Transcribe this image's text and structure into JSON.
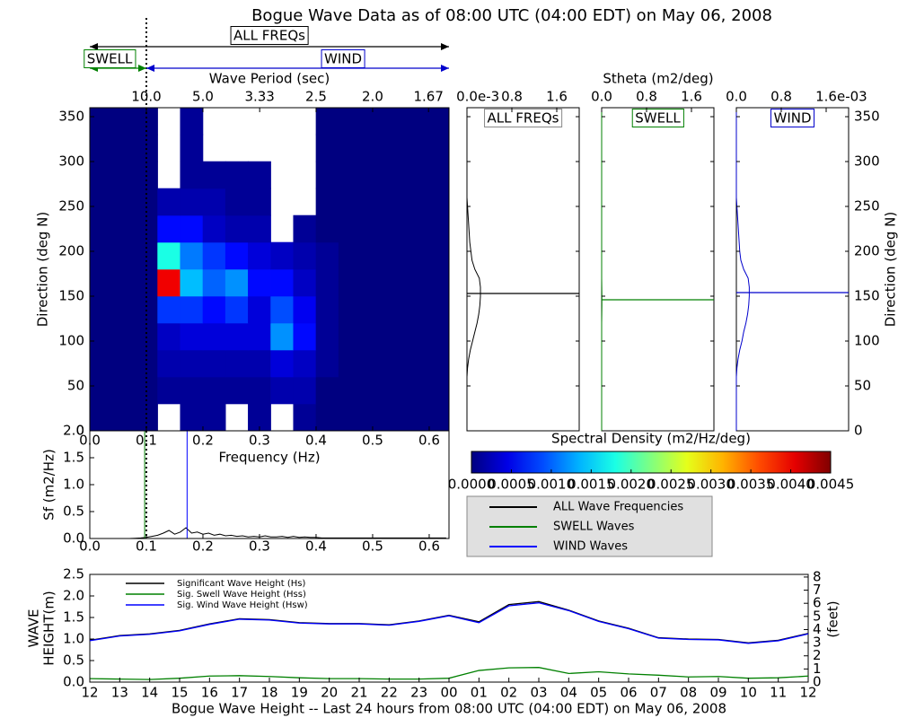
{
  "chart_data": [
    {
      "type": "heatmap",
      "title": "Bogue Wave Data as of 08:00 UTC (04:00 EDT) on May 06, 2008",
      "xlabel": "Frequency (Hz)",
      "ylabel": "Direction (deg N)",
      "xlim": [
        0,
        0.635
      ],
      "ylim": [
        0,
        360
      ],
      "xticks": [
        {
          "value": 0,
          "label": "0.0"
        },
        0.1,
        0.2,
        0.3,
        0.4,
        0.5,
        0.6
      ],
      "yticks": [
        0,
        50,
        100,
        150,
        200,
        250,
        300,
        350
      ],
      "x_bins": [
        0,
        0.04,
        0.08,
        0.12,
        0.16,
        0.2,
        0.24,
        0.28,
        0.32,
        0.36,
        0.4,
        0.44,
        0.48,
        0.52,
        0.56,
        0.6,
        0.64
      ],
      "y_bins": [
        0,
        30,
        60,
        90,
        120,
        150,
        180,
        210,
        240,
        270,
        300,
        330,
        360
      ],
      "values": [
        [
          0,
          0,
          0,
          null,
          0.0001,
          0.0001,
          null,
          0.0001,
          null,
          0.0001,
          0,
          0,
          0,
          0,
          0,
          0
        ],
        [
          0,
          0,
          0,
          0.0001,
          0.0001,
          0.0001,
          0.0001,
          0.0001,
          0.0002,
          0.0002,
          0,
          0,
          0,
          0,
          0,
          0
        ],
        [
          0,
          0,
          0,
          0.0002,
          0.0002,
          0.0002,
          0.0002,
          0.0002,
          0.0004,
          0.0003,
          0.0001,
          0,
          0,
          0,
          0,
          0
        ],
        [
          0,
          0,
          0,
          0.0003,
          0.0004,
          0.0004,
          0.0004,
          0.0004,
          0.0012,
          0.0006,
          0.0001,
          0,
          0,
          0,
          0,
          0
        ],
        [
          0,
          0,
          0,
          0.0008,
          0.0008,
          0.0006,
          0.0008,
          0.0004,
          0.0009,
          0.0005,
          0.0001,
          0,
          0,
          0,
          0,
          0
        ],
        [
          0,
          0,
          0,
          0.004,
          0.0014,
          0.001,
          0.0012,
          0.0006,
          0.0006,
          0.0003,
          0.0001,
          0,
          0,
          0,
          0,
          0
        ],
        [
          0,
          0,
          0,
          0.0018,
          0.0011,
          0.0008,
          0.0006,
          0.0004,
          0.0003,
          0.0002,
          0.0001,
          0,
          0,
          0,
          0,
          0
        ],
        [
          0,
          0,
          0,
          0.0006,
          0.0006,
          0.0003,
          0.0002,
          0.0002,
          null,
          0.0001,
          0,
          0,
          0,
          0,
          0,
          0
        ],
        [
          0,
          0,
          0,
          0.0002,
          0.0002,
          0.0002,
          0.0001,
          0.0001,
          null,
          null,
          0,
          0,
          0,
          0,
          0,
          0
        ],
        [
          0,
          0,
          0,
          null,
          0.0001,
          0.0001,
          0.0001,
          0.0001,
          null,
          null,
          0,
          0,
          0,
          0,
          0,
          0
        ],
        [
          0,
          0,
          0,
          null,
          0.0001,
          null,
          null,
          null,
          null,
          null,
          0,
          0,
          0,
          0,
          0,
          0
        ],
        [
          0,
          0,
          0,
          null,
          0.0001,
          null,
          null,
          null,
          null,
          null,
          0,
          0,
          0,
          0,
          0,
          0
        ]
      ],
      "separation_freq": 0.1,
      "bands": [
        {
          "name": "ALL FREQs",
          "color": "#000000"
        },
        {
          "name": "SWELL",
          "color": "#008000"
        },
        {
          "name": "WIND",
          "color": "#0000cc"
        }
      ],
      "period_axis": {
        "label": "Wave Period (sec)",
        "ticks": [
          {
            "value": 10,
            "label": "10.0"
          },
          {
            "value": 5,
            "label": "5.0"
          },
          3.33,
          2.5,
          {
            "value": 2,
            "label": "2.0"
          },
          1.67
        ]
      },
      "colorbar": {
        "label": "Spectral Density (m2/Hz/deg)",
        "lim": [
          0,
          0.0045
        ],
        "ticks": [
          {
            "value": 0,
            "label": "0.0000"
          },
          {
            "value": 0.0005,
            "label": "0.0005"
          },
          {
            "value": 0.001,
            "label": "0.0010"
          },
          {
            "value": 0.0015,
            "label": "0.0015"
          },
          {
            "value": 0.002,
            "label": "0.0020"
          },
          {
            "value": 0.0025,
            "label": "0.0025"
          },
          {
            "value": 0.003,
            "label": "0.0030"
          },
          {
            "value": 0.0035,
            "label": "0.0035"
          },
          {
            "value": 0.004,
            "label": "0.0040"
          },
          {
            "value": 0.0045,
            "label": "0.0045"
          }
        ]
      }
    },
    {
      "type": "direction-spectra",
      "xlabel": "Stheta (m2/deg)",
      "ylabel": "Direction (deg N)",
      "xlim": [
        0,
        0.002
      ],
      "ylim": [
        0,
        360
      ],
      "yticks": [
        0,
        50,
        100,
        150,
        200,
        250,
        300,
        350
      ],
      "directions": [
        0,
        10,
        20,
        30,
        40,
        50,
        60,
        70,
        80,
        90,
        100,
        110,
        120,
        130,
        140,
        150,
        160,
        170,
        180,
        190,
        200,
        210,
        220,
        230,
        240,
        250,
        260,
        270,
        280,
        290,
        300,
        310,
        320,
        330,
        340,
        350,
        360
      ],
      "panels": [
        {
          "name": "ALL FREQs",
          "color": "#000000",
          "mean_direction": 153,
          "offset_label": "e-3",
          "xticks": [
            {
              "value": 0,
              "label": "0.0"
            },
            {
              "value": 0.0008,
              "label": "0.8"
            },
            {
              "value": 0.0016,
              "label": "1.6"
            }
          ],
          "values": [
            0,
            0,
            0,
            0,
            0,
            0,
            0,
            1e-05,
            3e-05,
            6e-05,
            0.0001,
            0.00014,
            0.00018,
            0.00021,
            0.00023,
            0.00024,
            0.00024,
            0.00022,
            0.00014,
            9e-05,
            7e-05,
            5e-05,
            4e-05,
            3e-05,
            2e-05,
            1e-05,
            0,
            0,
            0,
            0,
            0,
            0,
            0,
            0,
            0,
            0,
            0
          ]
        },
        {
          "name": "SWELL",
          "color": "#008000",
          "mean_direction": 146,
          "xticks": [
            {
              "value": 0,
              "label": "0.0"
            },
            {
              "value": 0.0008,
              "label": "0.8"
            },
            {
              "value": 0.0016,
              "label": "1.6"
            }
          ],
          "values": [
            0,
            0,
            0,
            0,
            0,
            0,
            0,
            0,
            0,
            0,
            0,
            0,
            0,
            2e-06,
            4e-06,
            4e-06,
            2e-06,
            0,
            0,
            0,
            0,
            0,
            0,
            0,
            0,
            0,
            0,
            0,
            0,
            0,
            0,
            0,
            0,
            0,
            0,
            0,
            0
          ]
        },
        {
          "name": "WIND",
          "color": "#0000cc",
          "mean_direction": 154,
          "offset_label": "e-03",
          "xticks": [
            {
              "value": 0,
              "label": "0.0"
            },
            {
              "value": 0.0008,
              "label": "0.8"
            },
            {
              "value": 0.0016,
              "label": "1.6"
            }
          ],
          "values": [
            0,
            0,
            0,
            0,
            0,
            0,
            0,
            1e-05,
            3e-05,
            6e-05,
            0.0001,
            0.00013,
            0.00017,
            0.0002,
            0.00022,
            0.00023,
            0.00023,
            0.00021,
            0.00013,
            8e-05,
            6e-05,
            5e-05,
            4e-05,
            3e-05,
            2e-05,
            1e-05,
            0,
            0,
            0,
            0,
            0,
            0,
            0,
            0,
            0,
            0,
            0
          ]
        }
      ]
    },
    {
      "type": "line",
      "ylabel": "Sf (m2/Hz)",
      "xlim": [
        0,
        0.635
      ],
      "ylim": [
        0,
        2
      ],
      "xticks": [
        {
          "value": 0,
          "label": "0.0"
        },
        0.1,
        0.2,
        0.3,
        0.4,
        0.5,
        0.6
      ],
      "yticks": [
        {
          "value": 0,
          "label": "0.0"
        },
        0.5,
        {
          "value": 1,
          "label": "1.0"
        },
        1.5,
        {
          "value": 2,
          "label": "2.0"
        }
      ],
      "x": [
        0,
        0.01,
        0.02,
        0.03,
        0.04,
        0.05,
        0.06,
        0.07,
        0.08,
        0.09,
        0.1,
        0.11,
        0.12,
        0.13,
        0.14,
        0.15,
        0.16,
        0.17,
        0.18,
        0.19,
        0.2,
        0.21,
        0.22,
        0.23,
        0.24,
        0.25,
        0.26,
        0.27,
        0.28,
        0.29,
        0.3,
        0.31,
        0.32,
        0.33,
        0.34,
        0.35,
        0.36,
        0.37,
        0.38,
        0.39,
        0.4,
        0.41,
        0.42,
        0.43,
        0.44,
        0.45,
        0.46,
        0.47,
        0.48,
        0.49,
        0.5,
        0.51,
        0.52,
        0.53,
        0.54,
        0.55,
        0.56,
        0.57,
        0.58,
        0.59,
        0.6,
        0.61,
        0.62,
        0.63
      ],
      "series": [
        {
          "name": "ALL Wave Frequencies",
          "color": "#000000",
          "values": [
            0,
            0,
            0,
            0,
            0,
            0,
            0,
            0,
            0.005,
            0.01,
            0.02,
            0.04,
            0.06,
            0.1,
            0.15,
            0.08,
            0.12,
            0.2,
            0.1,
            0.12,
            0.08,
            0.1,
            0.06,
            0.08,
            0.05,
            0.06,
            0.04,
            0.05,
            0.03,
            0.04,
            0.03,
            0.05,
            0.03,
            0.03,
            0.04,
            0.02,
            0.04,
            0.02,
            0.03,
            0.02,
            0.02,
            0.01,
            0.01,
            0.01,
            0.01,
            0.01,
            0.01,
            0.01,
            0.01,
            0.01,
            0.01,
            0.01,
            0.01,
            0.01,
            0.01,
            0.01,
            0.01,
            0.01,
            0.01,
            0.01,
            0.01,
            0.01,
            0.01,
            0.01
          ]
        },
        {
          "name": "SWELL Waves",
          "color": "#008000",
          "peak_frequency": 0.097
        },
        {
          "name": "WIND Waves",
          "color": "#0000ff",
          "peak_frequency": 0.172
        }
      ]
    },
    {
      "type": "line",
      "xlabel": "Bogue Wave Height -- Last 24 hours from 08:00 UTC (04:00 EDT) on May 06, 2008",
      "ylabel": [
        "WAVE",
        "HEIGHT(m)"
      ],
      "y2label": "(feet)",
      "categories": [
        "12",
        "13",
        "14",
        "15",
        "16",
        "17",
        "18",
        "19",
        "20",
        "21",
        "22",
        "23",
        "00",
        "01",
        "02",
        "03",
        "04",
        "05",
        "06",
        "07",
        "08",
        "09",
        "10",
        "11",
        "12"
      ],
      "ylim": [
        0,
        2.5
      ],
      "yticks": [
        {
          "value": 0,
          "label": "0.0"
        },
        0.5,
        {
          "value": 1,
          "label": "1.0"
        },
        1.5,
        {
          "value": 2,
          "label": "2.0"
        },
        2.5
      ],
      "y2lim": [
        0,
        8.2
      ],
      "y2ticks": [
        0,
        1,
        2,
        3,
        4,
        5,
        6,
        7,
        8
      ],
      "series": [
        {
          "name": "Significant Wave Height (Hs)",
          "color": "#000000",
          "values": [
            0.97,
            1.08,
            1.12,
            1.2,
            1.35,
            1.47,
            1.45,
            1.38,
            1.36,
            1.36,
            1.33,
            1.42,
            1.55,
            1.4,
            1.8,
            1.87,
            1.67,
            1.42,
            1.25,
            1.03,
            1.0,
            0.99,
            0.91,
            0.97,
            1.13
          ]
        },
        {
          "name": "Sig. Swell Wave Height (Hss)",
          "color": "#008000",
          "values": [
            0.08,
            0.07,
            0.06,
            0.09,
            0.14,
            0.15,
            0.13,
            0.1,
            0.08,
            0.08,
            0.07,
            0.07,
            0.09,
            0.27,
            0.33,
            0.34,
            0.2,
            0.24,
            0.19,
            0.16,
            0.12,
            0.13,
            0.09,
            0.1,
            0.14
          ]
        },
        {
          "name": "Sig. Wind Wave Height (Hsw)",
          "color": "#0000ff",
          "values": [
            0.96,
            1.07,
            1.11,
            1.19,
            1.34,
            1.46,
            1.44,
            1.37,
            1.35,
            1.35,
            1.32,
            1.41,
            1.54,
            1.38,
            1.77,
            1.84,
            1.66,
            1.41,
            1.24,
            1.02,
            0.99,
            0.98,
            0.9,
            0.96,
            1.12
          ]
        }
      ]
    }
  ]
}
